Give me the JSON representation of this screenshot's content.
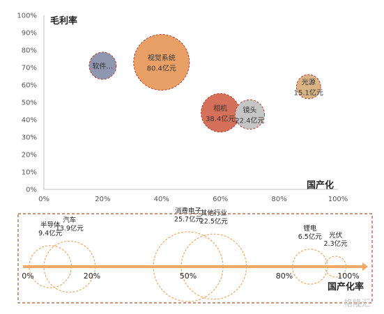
{
  "chart_data": [
    {
      "type": "scatter",
      "subtype": "bubble",
      "xlabel": "国产化",
      "ylabel": "毛利率",
      "xlim": [
        0,
        100
      ],
      "ylim": [
        0,
        100
      ],
      "x_ticks": [
        "0%",
        "20%",
        "40%",
        "60%",
        "80%",
        "100%"
      ],
      "y_ticks": [
        "0%",
        "10%",
        "20%",
        "30%",
        "40%",
        "50%",
        "60%",
        "70%",
        "80%",
        "90%",
        "100%"
      ],
      "grid": false,
      "points": [
        {
          "label": "软件…",
          "value_label": "",
          "x": 20,
          "y": 71,
          "size": 19,
          "color": "#8f97b0"
        },
        {
          "label": "视觉系统",
          "value_label": "80.4亿元",
          "x": 40,
          "y": 73,
          "size": 80.4,
          "color": "#e8a066"
        },
        {
          "label": "相机",
          "value_label": "38.4亿元",
          "x": 60,
          "y": 44,
          "size": 38.4,
          "color": "#d5705a"
        },
        {
          "label": "镜头",
          "value_label": "22.4亿元",
          "x": 70,
          "y": 43,
          "size": 22.4,
          "color": "#c6c6c6"
        },
        {
          "label": "光源",
          "value_label": "15.1亿元",
          "x": 90,
          "y": 59,
          "size": 15.1,
          "color": "#dbb485"
        }
      ]
    },
    {
      "type": "scatter",
      "subtype": "bubble-timeline",
      "xlabel": "国产化率",
      "x_ticks": [
        {
          "label": "0%",
          "value": 0
        },
        {
          "label": "20%",
          "value": 20
        },
        {
          "label": "50%",
          "value": 50
        },
        {
          "label": "80%",
          "value": 80
        },
        {
          "label": "100%",
          "value": 100
        }
      ],
      "points": [
        {
          "name": "半导体",
          "value_label": "9.4亿元",
          "x": 7,
          "size": 9.4
        },
        {
          "name": "汽车",
          "value_label": "13.9亿元",
          "x": 13,
          "size": 13.9
        },
        {
          "name": "消费电子",
          "value_label": "25.7亿元",
          "x": 50,
          "size": 25.7
        },
        {
          "name": "其他行业",
          "value_label": "22.5亿元",
          "x": 58,
          "size": 22.5
        },
        {
          "name": "锂电",
          "value_label": "6.5亿元",
          "x": 88,
          "size": 6.5
        },
        {
          "name": "光伏",
          "value_label": "2.3亿元",
          "x": 96,
          "size": 2.3
        }
      ]
    }
  ],
  "watermark": "格隆汇"
}
